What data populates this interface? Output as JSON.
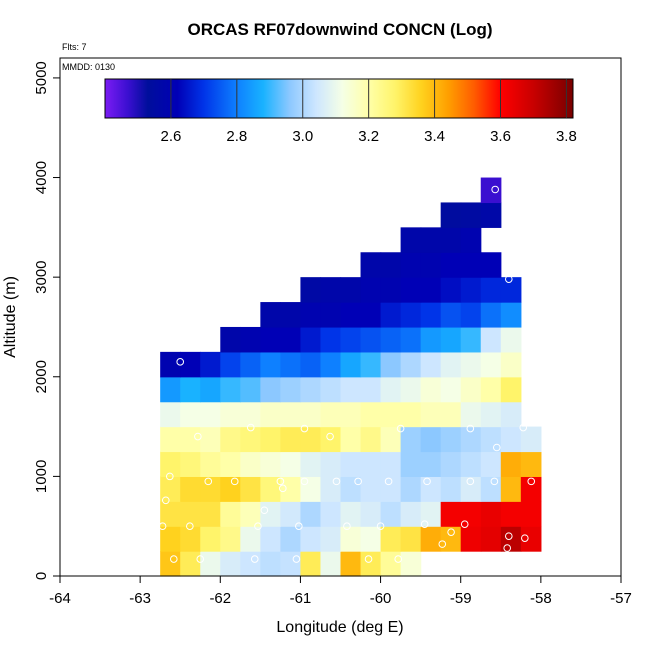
{
  "chart_data": {
    "type": "heatmap",
    "title": "ORCAS RF07downwind CONCN (Log)",
    "xlabel": "Longitude (deg E)",
    "ylabel": "Altitude (m)",
    "flts_note": "Flts: 7",
    "mmdd_note": "MMDD: 0130",
    "xlim": [
      -64,
      -57
    ],
    "ylim": [
      0,
      5200
    ],
    "x_ticks": [
      -64,
      -63,
      -62,
      -61,
      -60,
      -59,
      -58,
      -57
    ],
    "x_tick_labels": [
      "-64",
      "-63",
      "-62",
      "-61",
      "-60",
      "-59",
      "-58",
      "-57"
    ],
    "y_ticks": [
      0,
      1000,
      2000,
      3000,
      4000,
      5000
    ],
    "y_tick_labels": [
      "0",
      "1000",
      "2000",
      "3000",
      "4000",
      "5000"
    ],
    "cell_width_deg": 0.25,
    "cell_height_m": 250,
    "grid_x0": -62.75,
    "grid_y0": 0,
    "colorbar": {
      "range": [
        2.4,
        3.82
      ],
      "ticks": [
        2.6,
        2.8,
        3.0,
        3.2,
        3.4,
        3.6,
        3.8
      ],
      "tick_labels": [
        "2.6",
        "2.8",
        "3.0",
        "3.2",
        "3.4",
        "3.6",
        "3.8"
      ],
      "stops": [
        {
          "v": 2.4,
          "color": "#7B1CF4"
        },
        {
          "v": 2.47,
          "color": "#3A0FD0"
        },
        {
          "v": 2.53,
          "color": "#000E9C"
        },
        {
          "v": 2.62,
          "color": "#0000B6"
        },
        {
          "v": 2.7,
          "color": "#0034E8"
        },
        {
          "v": 2.8,
          "color": "#0E80FF"
        },
        {
          "v": 2.88,
          "color": "#19B2FF"
        },
        {
          "v": 2.96,
          "color": "#8CC8FF"
        },
        {
          "v": 3.04,
          "color": "#CDE6FF"
        },
        {
          "v": 3.12,
          "color": "#F5FFE6"
        },
        {
          "v": 3.2,
          "color": "#FFFFA8"
        },
        {
          "v": 3.28,
          "color": "#FFF46A"
        },
        {
          "v": 3.36,
          "color": "#FFD21E"
        },
        {
          "v": 3.44,
          "color": "#FFA000"
        },
        {
          "v": 3.52,
          "color": "#FF5C00"
        },
        {
          "v": 3.6,
          "color": "#FF0000"
        },
        {
          "v": 3.7,
          "color": "#C80000"
        },
        {
          "v": 3.82,
          "color": "#780000"
        }
      ]
    },
    "rows": [
      {
        "altitude_bottom": 0,
        "values": [
          3.38,
          3.3,
          3.1,
          3.06,
          3.04,
          3.02,
          3.03,
          3.3,
          3.1,
          3.4,
          3.3,
          3.22,
          3.14
        ]
      },
      {
        "altitude_bottom": 250,
        "values": [
          3.36,
          3.34,
          3.28,
          3.24,
          3.1,
          3.04,
          3.0,
          3.04,
          3.06,
          3.14,
          3.12,
          3.3,
          3.32,
          3.42,
          3.4,
          3.63,
          3.65,
          3.72,
          3.64
        ]
      },
      {
        "altitude_bottom": 500,
        "values": [
          3.32,
          3.32,
          3.32,
          3.22,
          3.18,
          3.08,
          3.05,
          3.0,
          3.04,
          3.08,
          3.06,
          3.02,
          3.06,
          3.08,
          3.62,
          3.62,
          3.64,
          3.62,
          3.62
        ]
      },
      {
        "altitude_bottom": 750,
        "values": [
          3.3,
          3.34,
          3.34,
          3.36,
          3.32,
          3.26,
          3.2,
          3.12,
          3.06,
          3.02,
          3.04,
          3.04,
          3.0,
          3.04,
          3.02,
          3.06,
          3.02,
          3.4,
          3.62
        ]
      },
      {
        "altitude_bottom": 1000,
        "values": [
          3.28,
          3.26,
          3.22,
          3.2,
          3.16,
          3.14,
          3.12,
          3.08,
          3.06,
          3.04,
          3.04,
          3.04,
          2.98,
          2.98,
          3.0,
          3.02,
          3.04,
          3.42,
          3.4
        ]
      },
      {
        "altitude_bottom": 1250,
        "values": [
          3.2,
          3.2,
          3.18,
          3.24,
          3.26,
          3.28,
          3.3,
          3.3,
          3.28,
          3.2,
          3.24,
          3.18,
          2.98,
          2.96,
          2.98,
          3.0,
          3.02,
          3.04,
          3.06
        ]
      },
      {
        "altitude_bottom": 1500,
        "values": [
          3.1,
          3.12,
          3.12,
          3.14,
          3.14,
          3.16,
          3.16,
          3.16,
          3.18,
          3.18,
          3.2,
          3.2,
          3.2,
          3.18,
          3.18,
          3.1,
          3.08,
          3.06
        ]
      },
      {
        "altitude_bottom": 1750,
        "values": [
          2.84,
          2.88,
          2.86,
          2.9,
          2.92,
          2.96,
          2.98,
          3.0,
          3.02,
          3.04,
          3.04,
          3.08,
          3.1,
          3.14,
          3.12,
          3.16,
          3.2,
          3.28
        ]
      },
      {
        "altitude_bottom": 2000,
        "values": [
          2.6,
          2.62,
          2.66,
          2.72,
          2.76,
          2.8,
          2.78,
          2.76,
          2.8,
          2.86,
          2.9,
          2.96,
          3.0,
          3.04,
          3.08,
          3.1,
          3.12,
          3.16
        ]
      },
      {
        "altitude_bottom": 2250,
        "start": 3,
        "values": [
          2.58,
          2.6,
          2.62,
          2.62,
          2.66,
          2.7,
          2.72,
          2.74,
          2.76,
          2.78,
          2.84,
          2.86,
          2.9,
          3.04,
          3.1
        ]
      },
      {
        "altitude_bottom": 2500,
        "start": 5,
        "values": [
          2.58,
          2.58,
          2.6,
          2.6,
          2.62,
          2.62,
          2.66,
          2.68,
          2.7,
          2.74,
          2.72,
          2.78,
          2.82
        ]
      },
      {
        "altitude_bottom": 2750,
        "start": 7,
        "values": [
          2.56,
          2.58,
          2.58,
          2.6,
          2.6,
          2.62,
          2.62,
          2.64,
          2.66,
          2.68,
          2.68
        ]
      },
      {
        "altitude_bottom": 3000,
        "start": 10,
        "values": [
          2.58,
          2.58,
          2.6,
          2.6,
          2.62,
          2.62,
          2.62
        ]
      },
      {
        "altitude_bottom": 3250,
        "start": 12,
        "values": [
          2.58,
          2.58,
          2.58,
          2.6
        ]
      },
      {
        "altitude_bottom": 3500,
        "start": 14,
        "values": [
          2.54,
          2.55,
          2.57
        ]
      },
      {
        "altitude_bottom": 3750,
        "start": 16,
        "values": [
          2.47
        ]
      }
    ],
    "observation_points": [
      [
        -62.5,
        2150
      ],
      [
        -58.57,
        3880
      ],
      [
        -58.4,
        2980
      ],
      [
        -62.58,
        170
      ],
      [
        -62.25,
        170
      ],
      [
        -61.57,
        170
      ],
      [
        -61.05,
        170
      ],
      [
        -60.15,
        170
      ],
      [
        -59.78,
        170
      ],
      [
        -59.15,
        170
      ],
      [
        -62.72,
        500
      ],
      [
        -62.38,
        500
      ],
      [
        -61.53,
        500
      ],
      [
        -61.02,
        500
      ],
      [
        -60.42,
        500
      ],
      [
        -60.0,
        500
      ],
      [
        -59.45,
        520
      ],
      [
        -59.23,
        320
      ],
      [
        -59.12,
        440
      ],
      [
        -58.95,
        520
      ],
      [
        -58.4,
        400
      ],
      [
        -58.2,
        380
      ],
      [
        -58.42,
        280
      ],
      [
        -62.68,
        760
      ],
      [
        -61.45,
        660
      ],
      [
        -61.22,
        880
      ],
      [
        -62.63,
        1000
      ],
      [
        -62.15,
        950
      ],
      [
        -61.82,
        950
      ],
      [
        -61.25,
        950
      ],
      [
        -60.95,
        950
      ],
      [
        -60.55,
        950
      ],
      [
        -60.28,
        950
      ],
      [
        -59.9,
        950
      ],
      [
        -59.42,
        950
      ],
      [
        -58.88,
        950
      ],
      [
        -58.58,
        950
      ],
      [
        -58.12,
        950
      ],
      [
        -62.28,
        1400
      ],
      [
        -61.62,
        1490
      ],
      [
        -60.95,
        1480
      ],
      [
        -60.63,
        1400
      ],
      [
        -59.75,
        1480
      ],
      [
        -58.88,
        1480
      ],
      [
        -58.55,
        1290
      ],
      [
        -58.22,
        1490
      ]
    ]
  }
}
